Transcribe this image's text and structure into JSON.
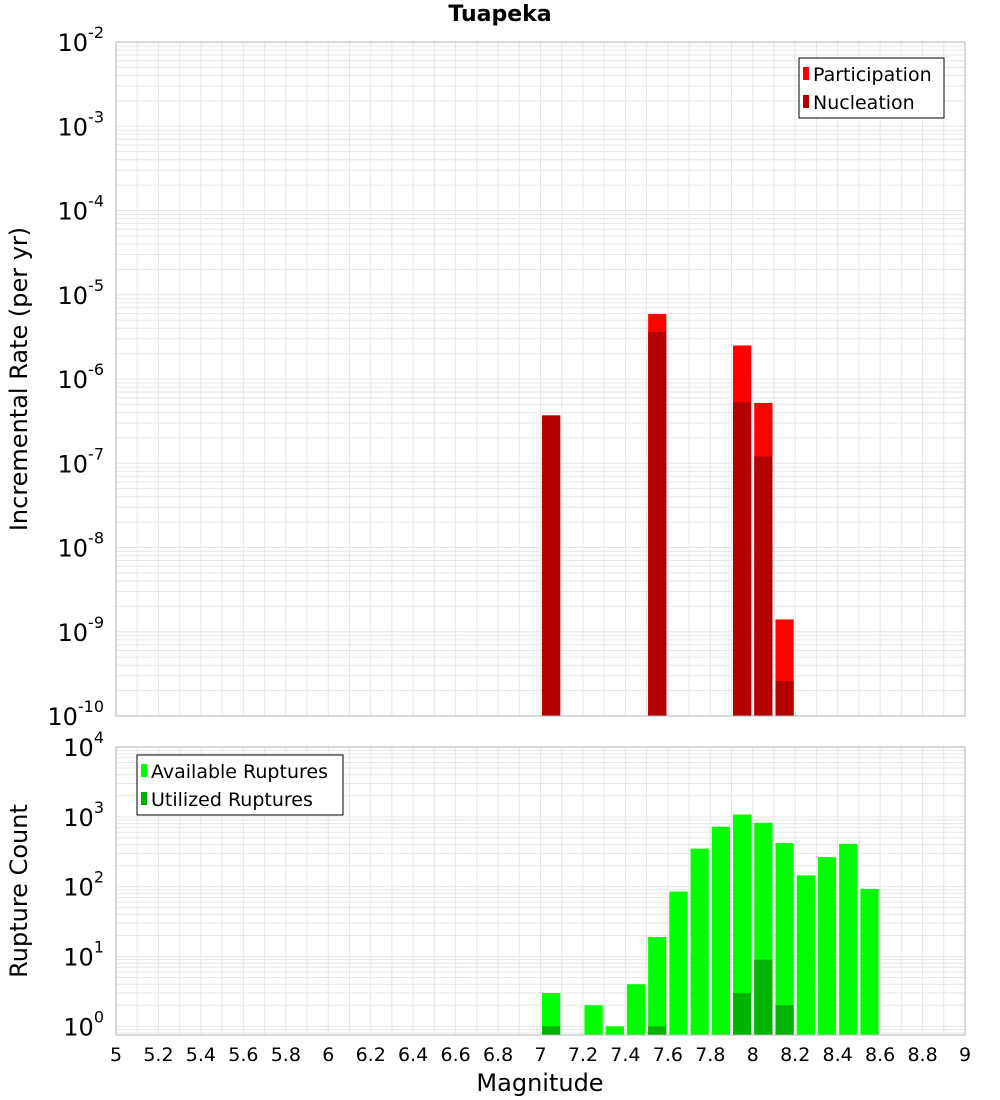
{
  "title": "Tuapeka",
  "xlabel": "Magnitude",
  "colors": {
    "participation": "#ff0000",
    "nucleation": "#b30000",
    "available": "#00ff00",
    "utilized": "#00b300",
    "grid": "#e6e6e6",
    "frame": "#b3b3b3"
  },
  "chart_data": [
    {
      "type": "bar",
      "title": "Tuapeka",
      "ylabel": "Incremental Rate (per yr)",
      "xlabel": "Magnitude",
      "yscale": "log",
      "ylim": [
        1e-10,
        0.01
      ],
      "xlim": [
        5,
        9
      ],
      "bin_width": 0.1,
      "legend": {
        "placement": "top-right",
        "entries": [
          "Participation",
          "Nucleation"
        ]
      },
      "series": [
        {
          "name": "Participation",
          "x": [
            7.05,
            7.55,
            7.95,
            8.05,
            8.15
          ],
          "values": [
            3.7e-07,
            5.9e-06,
            2.5e-06,
            5.2e-07,
            1.4e-09
          ]
        },
        {
          "name": "Nucleation",
          "x": [
            7.05,
            7.55,
            7.95,
            8.05,
            8.15
          ],
          "values": [
            3.7e-07,
            3.6e-06,
            5.3e-07,
            1.2e-07,
            2.6e-10
          ]
        }
      ],
      "y_ticks": [
        {
          "base": "10",
          "exp": "-10"
        },
        {
          "base": "10",
          "exp": "-9"
        },
        {
          "base": "10",
          "exp": "-8"
        },
        {
          "base": "10",
          "exp": "-7"
        },
        {
          "base": "10",
          "exp": "-6"
        },
        {
          "base": "10",
          "exp": "-5"
        },
        {
          "base": "10",
          "exp": "-4"
        },
        {
          "base": "10",
          "exp": "-3"
        },
        {
          "base": "10",
          "exp": "-2"
        }
      ],
      "grid": true
    },
    {
      "type": "bar",
      "ylabel": "Rupture Count",
      "xlabel": "Magnitude",
      "yscale": "log",
      "ylim": [
        0.75,
        10000.0
      ],
      "xlim": [
        5,
        9
      ],
      "bin_width": 0.1,
      "legend": {
        "placement": "top-left",
        "entries": [
          "Available Ruptures",
          "Utilized Ruptures"
        ]
      },
      "series": [
        {
          "name": "Available Ruptures",
          "x": [
            7.05,
            7.25,
            7.35,
            7.45,
            7.55,
            7.65,
            7.75,
            7.85,
            7.95,
            8.05,
            8.15,
            8.25,
            8.35,
            8.45,
            8.55
          ],
          "values": [
            3,
            2,
            1,
            4,
            19,
            85,
            350,
            720,
            1080,
            820,
            420,
            145,
            265,
            410,
            93
          ]
        },
        {
          "name": "Utilized Ruptures",
          "x": [
            7.05,
            7.55,
            7.95,
            8.05,
            8.15
          ],
          "values": [
            1,
            1,
            3,
            9,
            2
          ]
        }
      ],
      "y_ticks": [
        {
          "base": "10",
          "exp": "0"
        },
        {
          "base": "10",
          "exp": "1"
        },
        {
          "base": "10",
          "exp": "2"
        },
        {
          "base": "10",
          "exp": "3"
        },
        {
          "base": "10",
          "exp": "4"
        }
      ],
      "x_ticks": [
        "5",
        "5.2",
        "5.4",
        "5.6",
        "5.8",
        "6",
        "6.2",
        "6.4",
        "6.6",
        "6.8",
        "7",
        "7.2",
        "7.4",
        "7.6",
        "7.8",
        "8",
        "8.2",
        "8.4",
        "8.6",
        "8.8",
        "9"
      ],
      "grid": true
    }
  ]
}
